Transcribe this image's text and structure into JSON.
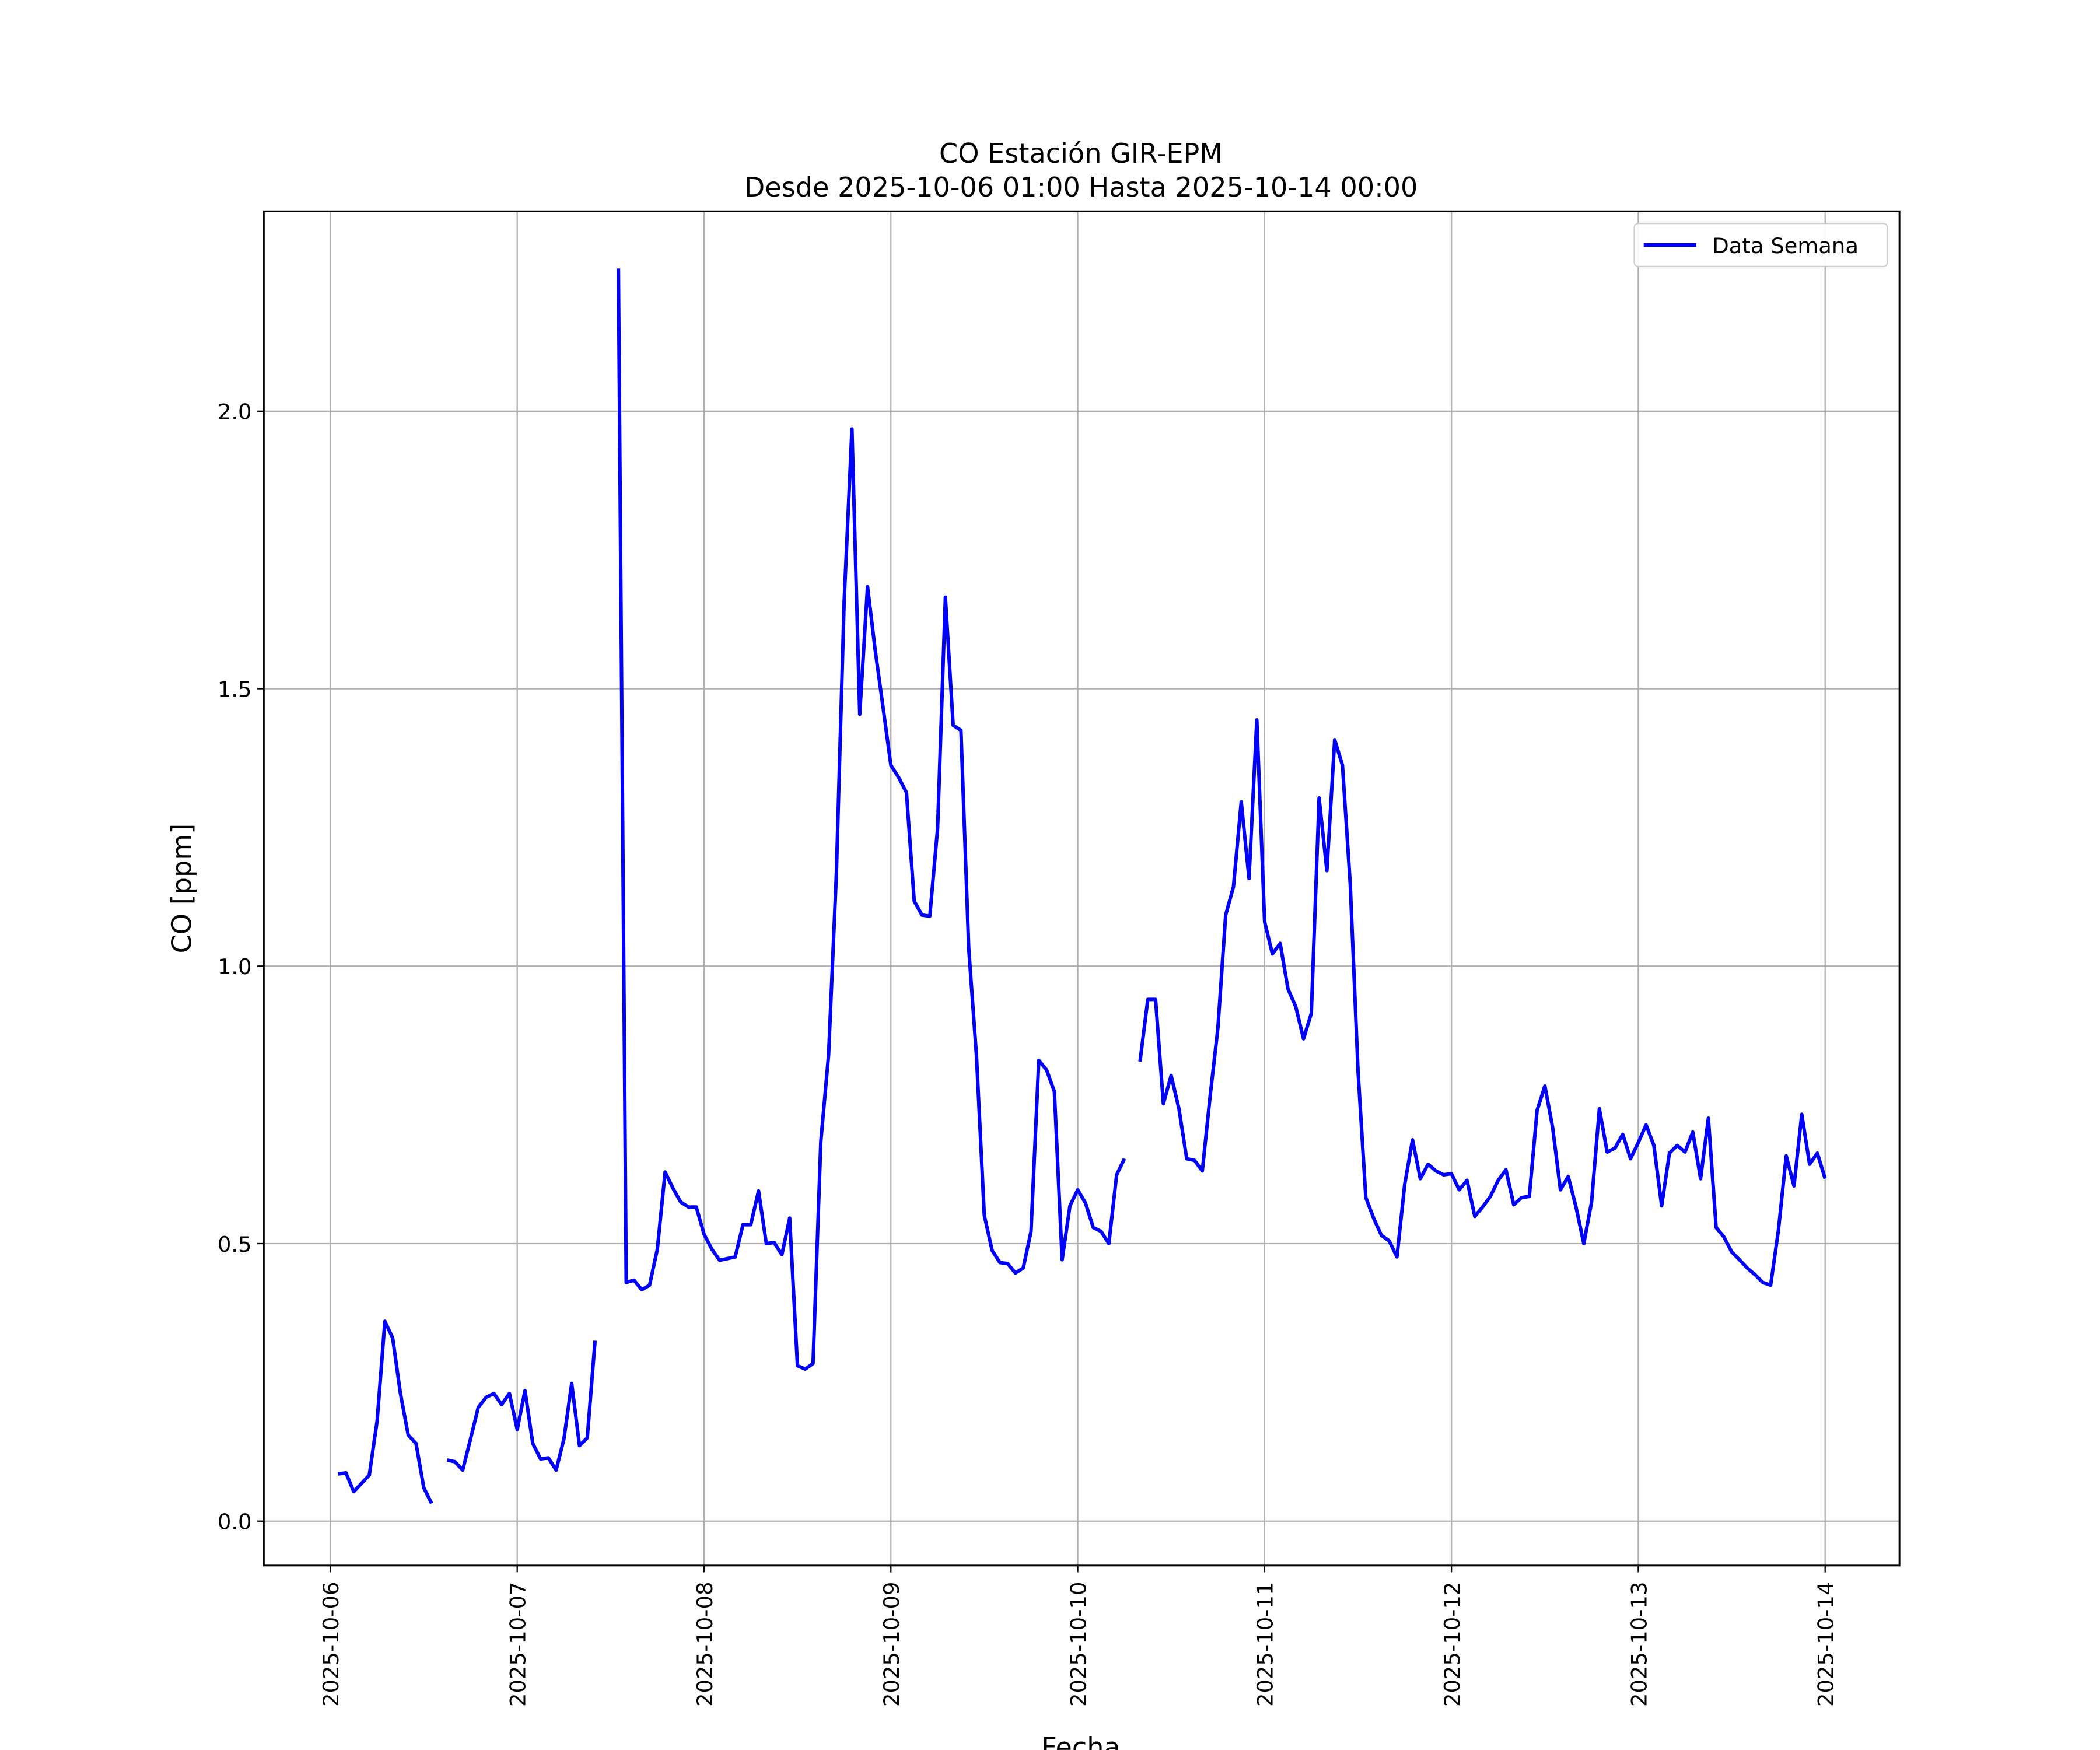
{
  "chart_data": {
    "type": "line",
    "title": "CO Estación GIR-EPM",
    "subtitle": "Desde 2025-10-06 01:00 Hasta 2025-10-14 00:00",
    "xlabel": "Fecha",
    "ylabel": "CO [ppm]",
    "grid": true,
    "legend": "upper right",
    "xlim": [
      "2025-10-05 15:27",
      "2025-10-14 09:33"
    ],
    "xticks": [
      "2025-10-06",
      "2025-10-07",
      "2025-10-08",
      "2025-10-09",
      "2025-10-10",
      "2025-10-11",
      "2025-10-12",
      "2025-10-13",
      "2025-10-14"
    ],
    "ylim": [
      -0.08,
      2.36
    ],
    "yticks": [
      {
        "value": 0,
        "label": "0.0"
      },
      0.5,
      {
        "value": 1,
        "label": "1.0"
      },
      1.5,
      {
        "value": 2,
        "label": "2.0"
      }
    ],
    "x": [
      "2025-10-06 01:00",
      "2025-10-06 02:00",
      "2025-10-06 03:00",
      "2025-10-06 04:00",
      "2025-10-06 05:00",
      "2025-10-06 06:00",
      "2025-10-06 07:00",
      "2025-10-06 08:00",
      "2025-10-06 09:00",
      "2025-10-06 10:00",
      "2025-10-06 11:00",
      "2025-10-06 12:00",
      "2025-10-06 13:00",
      "2025-10-06 14:00",
      "2025-10-06 15:00",
      "2025-10-06 16:00",
      "2025-10-06 17:00",
      "2025-10-06 18:00",
      "2025-10-06 19:00",
      "2025-10-06 20:00",
      "2025-10-06 21:00",
      "2025-10-06 22:00",
      "2025-10-06 23:00",
      "2025-10-07 00:00",
      "2025-10-07 01:00",
      "2025-10-07 02:00",
      "2025-10-07 03:00",
      "2025-10-07 04:00",
      "2025-10-07 05:00",
      "2025-10-07 06:00",
      "2025-10-07 07:00",
      "2025-10-07 08:00",
      "2025-10-07 09:00",
      "2025-10-07 10:00",
      "2025-10-07 11:00",
      "2025-10-07 12:00",
      "2025-10-07 13:00",
      "2025-10-07 14:00",
      "2025-10-07 15:00",
      "2025-10-07 16:00",
      "2025-10-07 17:00",
      "2025-10-07 18:00",
      "2025-10-07 19:00",
      "2025-10-07 20:00",
      "2025-10-07 21:00",
      "2025-10-07 22:00",
      "2025-10-07 23:00",
      "2025-10-08 00:00",
      "2025-10-08 01:00",
      "2025-10-08 02:00",
      "2025-10-08 03:00",
      "2025-10-08 04:00",
      "2025-10-08 05:00",
      "2025-10-08 06:00",
      "2025-10-08 07:00",
      "2025-10-08 08:00",
      "2025-10-08 09:00",
      "2025-10-08 10:00",
      "2025-10-08 11:00",
      "2025-10-08 12:00",
      "2025-10-08 13:00",
      "2025-10-08 14:00",
      "2025-10-08 15:00",
      "2025-10-08 16:00",
      "2025-10-08 17:00",
      "2025-10-08 18:00",
      "2025-10-08 19:00",
      "2025-10-08 20:00",
      "2025-10-08 21:00",
      "2025-10-08 22:00",
      "2025-10-08 23:00",
      "2025-10-09 00:00",
      "2025-10-09 01:00",
      "2025-10-09 02:00",
      "2025-10-09 03:00",
      "2025-10-09 04:00",
      "2025-10-09 05:00",
      "2025-10-09 06:00",
      "2025-10-09 07:00",
      "2025-10-09 08:00",
      "2025-10-09 09:00",
      "2025-10-09 10:00",
      "2025-10-09 11:00",
      "2025-10-09 12:00",
      "2025-10-09 13:00",
      "2025-10-09 14:00",
      "2025-10-09 15:00",
      "2025-10-09 16:00",
      "2025-10-09 17:00",
      "2025-10-09 18:00",
      "2025-10-09 19:00",
      "2025-10-09 20:00",
      "2025-10-09 21:00",
      "2025-10-09 22:00",
      "2025-10-09 23:00",
      "2025-10-10 00:00",
      "2025-10-10 01:00",
      "2025-10-10 02:00",
      "2025-10-10 03:00",
      "2025-10-10 04:00",
      "2025-10-10 05:00",
      "2025-10-10 06:00",
      "2025-10-10 07:00",
      "2025-10-10 08:00",
      "2025-10-10 09:00",
      "2025-10-10 10:00",
      "2025-10-10 11:00",
      "2025-10-10 12:00",
      "2025-10-10 13:00",
      "2025-10-10 14:00",
      "2025-10-10 15:00",
      "2025-10-10 16:00",
      "2025-10-10 17:00",
      "2025-10-10 18:00",
      "2025-10-10 19:00",
      "2025-10-10 20:00",
      "2025-10-10 21:00",
      "2025-10-10 22:00",
      "2025-10-10 23:00",
      "2025-10-11 00:00",
      "2025-10-11 01:00",
      "2025-10-11 02:00",
      "2025-10-11 03:00",
      "2025-10-11 04:00",
      "2025-10-11 05:00",
      "2025-10-11 06:00",
      "2025-10-11 07:00",
      "2025-10-11 08:00",
      "2025-10-11 09:00",
      "2025-10-11 10:00",
      "2025-10-11 11:00",
      "2025-10-11 12:00",
      "2025-10-11 13:00",
      "2025-10-11 14:00",
      "2025-10-11 15:00",
      "2025-10-11 16:00",
      "2025-10-11 17:00",
      "2025-10-11 18:00",
      "2025-10-11 19:00",
      "2025-10-11 20:00",
      "2025-10-11 21:00",
      "2025-10-11 22:00",
      "2025-10-11 23:00",
      "2025-10-12 00:00",
      "2025-10-12 01:00",
      "2025-10-12 02:00",
      "2025-10-12 03:00",
      "2025-10-12 04:00",
      "2025-10-12 05:00",
      "2025-10-12 06:00",
      "2025-10-12 07:00",
      "2025-10-12 08:00",
      "2025-10-12 09:00",
      "2025-10-12 10:00",
      "2025-10-12 11:00",
      "2025-10-12 12:00",
      "2025-10-12 13:00",
      "2025-10-12 14:00",
      "2025-10-12 15:00",
      "2025-10-12 16:00",
      "2025-10-12 17:00",
      "2025-10-12 18:00",
      "2025-10-12 19:00",
      "2025-10-12 20:00",
      "2025-10-12 21:00",
      "2025-10-12 22:00",
      "2025-10-12 23:00",
      "2025-10-13 00:00",
      "2025-10-13 01:00",
      "2025-10-13 02:00",
      "2025-10-13 03:00",
      "2025-10-13 04:00",
      "2025-10-13 05:00",
      "2025-10-13 06:00",
      "2025-10-13 07:00",
      "2025-10-13 08:00",
      "2025-10-13 09:00",
      "2025-10-13 10:00",
      "2025-10-13 11:00",
      "2025-10-13 12:00",
      "2025-10-13 13:00",
      "2025-10-13 14:00",
      "2025-10-13 15:00",
      "2025-10-13 16:00",
      "2025-10-13 17:00",
      "2025-10-13 18:00",
      "2025-10-13 19:00",
      "2025-10-13 20:00",
      "2025-10-13 21:00",
      "2025-10-13 22:00",
      "2025-10-13 23:00",
      "2025-10-14 00:00"
    ],
    "series": [
      {
        "name": "Data Semana",
        "color": "#0000ff",
        "values": [
          0.085,
          0.087,
          0.053,
          0.068,
          0.083,
          0.18,
          0.36,
          0.33,
          0.23,
          0.155,
          0.14,
          0.06,
          0.032,
          null,
          0.11,
          0.107,
          0.092,
          0.148,
          0.205,
          0.223,
          0.23,
          0.21,
          0.23,
          0.165,
          0.235,
          0.14,
          0.112,
          0.114,
          0.092,
          0.148,
          0.248,
          0.136,
          0.15,
          0.325,
          null,
          null,
          2.257,
          0.43,
          0.434,
          0.417,
          0.425,
          0.49,
          0.629,
          0.6,
          0.575,
          0.566,
          0.566,
          0.517,
          0.49,
          0.47,
          0.473,
          0.476,
          0.534,
          0.534,
          0.595,
          0.5,
          0.502,
          0.48,
          0.546,
          0.28,
          0.274,
          0.284,
          0.684,
          0.84,
          1.167,
          1.658,
          1.968,
          1.454,
          1.684,
          1.568,
          1.466,
          1.362,
          1.34,
          1.313,
          1.117,
          1.092,
          1.09,
          1.248,
          1.665,
          1.434,
          1.425,
          1.032,
          0.837,
          0.551,
          0.488,
          0.466,
          0.464,
          0.447,
          0.456,
          0.522,
          0.83,
          0.813,
          0.774,
          0.471,
          0.568,
          0.597,
          0.573,
          0.529,
          0.522,
          0.5,
          0.624,
          0.653,
          null,
          0.828,
          0.94,
          0.94,
          0.752,
          0.803,
          0.743,
          0.653,
          0.65,
          0.631,
          0.765,
          0.888,
          1.092,
          1.143,
          1.296,
          1.158,
          1.444,
          1.08,
          1.022,
          1.041,
          0.959,
          0.927,
          0.869,
          0.915,
          1.303,
          1.172,
          1.408,
          1.362,
          1.148,
          0.811,
          0.583,
          0.546,
          0.515,
          0.505,
          0.476,
          0.607,
          0.687,
          0.617,
          0.643,
          0.631,
          0.624,
          0.626,
          0.597,
          0.614,
          0.549,
          0.566,
          0.585,
          0.614,
          0.633,
          0.57,
          0.583,
          0.585,
          0.74,
          0.784,
          0.709,
          0.597,
          0.621,
          0.566,
          0.5,
          0.575,
          0.743,
          0.665,
          0.672,
          0.697,
          0.653,
          0.682,
          0.714,
          0.677,
          0.568,
          0.663,
          0.677,
          0.665,
          0.701,
          0.617,
          0.726,
          0.529,
          0.512,
          0.485,
          0.471,
          0.456,
          0.444,
          0.43,
          0.425,
          0.524,
          0.658,
          0.604,
          0.733,
          0.643,
          0.663,
          0.617
        ]
      }
    ]
  }
}
